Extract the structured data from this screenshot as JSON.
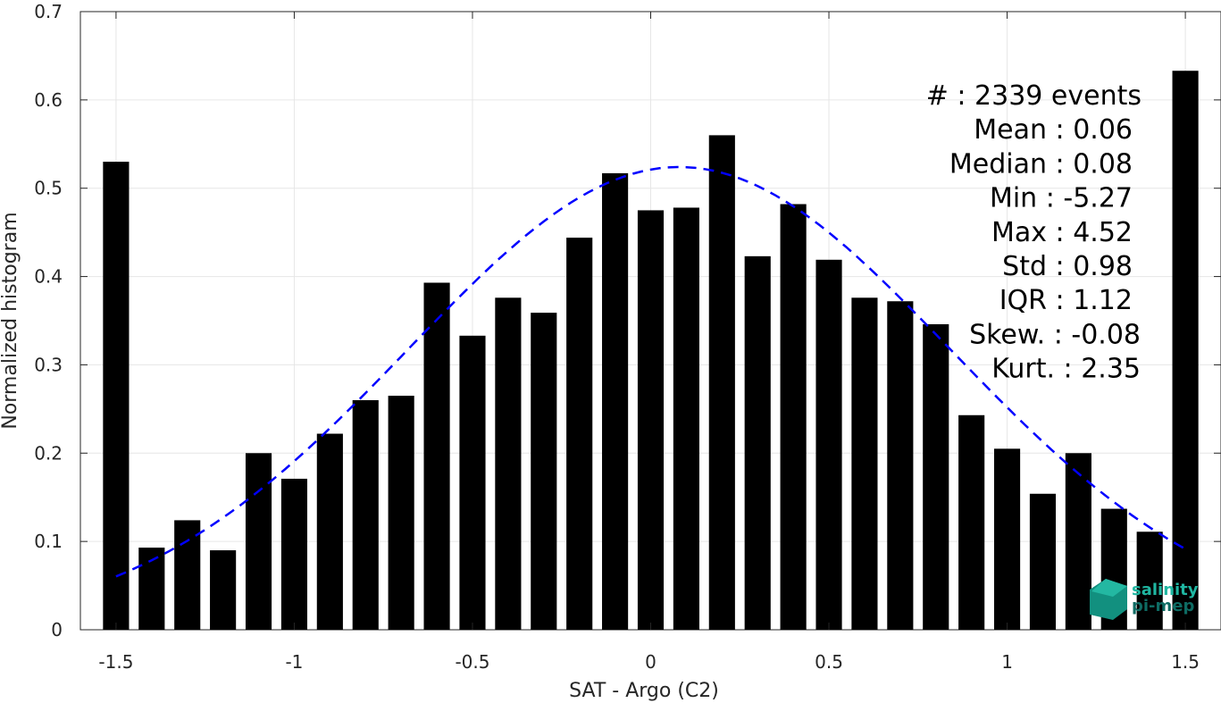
{
  "chart_data": {
    "type": "bar",
    "xlabel": "SAT - Argo (C2)",
    "ylabel": "Normalized histogram",
    "xlim": [
      -1.6,
      1.6
    ],
    "ylim": [
      0,
      0.7
    ],
    "grid": true,
    "x_ticks": [
      -1.5,
      -1,
      -0.5,
      0,
      0.5,
      1,
      1.5
    ],
    "x_tick_labels": [
      "-1.5",
      "-1",
      "-0.5",
      "0",
      "0.5",
      "1",
      "1.5"
    ],
    "y_ticks": [
      0,
      0.1,
      0.2,
      0.3,
      0.4,
      0.5,
      0.6,
      0.7
    ],
    "y_tick_labels": [
      "0",
      "0.1",
      "0.2",
      "0.3",
      "0.4",
      "0.5",
      "0.6",
      "0.7"
    ],
    "bin_width": 0.1,
    "x": [
      -1.5,
      -1.4,
      -1.3,
      -1.2,
      -1.1,
      -1.0,
      -0.9,
      -0.8,
      -0.7,
      -0.6,
      -0.5,
      -0.4,
      -0.3,
      -0.2,
      -0.1,
      0.0,
      0.1,
      0.2,
      0.3,
      0.4,
      0.5,
      0.6,
      0.7,
      0.8,
      0.9,
      1.0,
      1.1,
      1.2,
      1.3,
      1.4,
      1.5
    ],
    "values": [
      0.53,
      0.093,
      0.124,
      0.09,
      0.2,
      0.171,
      0.222,
      0.26,
      0.265,
      0.393,
      0.333,
      0.376,
      0.359,
      0.444,
      0.517,
      0.475,
      0.478,
      0.56,
      0.423,
      0.482,
      0.419,
      0.376,
      0.372,
      0.346,
      0.243,
      0.205,
      0.154,
      0.2,
      0.137,
      0.111,
      0.633
    ],
    "bar_color": "#000000",
    "fit_curve": {
      "style": "dashed",
      "color": "#0000FF",
      "mean": 0.08,
      "std": 0.76,
      "peak": 0.524,
      "x_range": [
        -1.5,
        1.5
      ]
    },
    "stats": [
      "#  : 2339 events",
      "Mean : 0.06",
      "Median : 0.08",
      "Min : -5.27",
      "Max : 4.52",
      "Std : 0.98",
      "IQR : 1.12",
      "Skew. : -0.08",
      "Kurt. : 2.35"
    ],
    "logo": {
      "line1": "salinity",
      "line2": "pi-mep",
      "color1": "#1FB6A1",
      "color2": "#0E6B63"
    }
  }
}
